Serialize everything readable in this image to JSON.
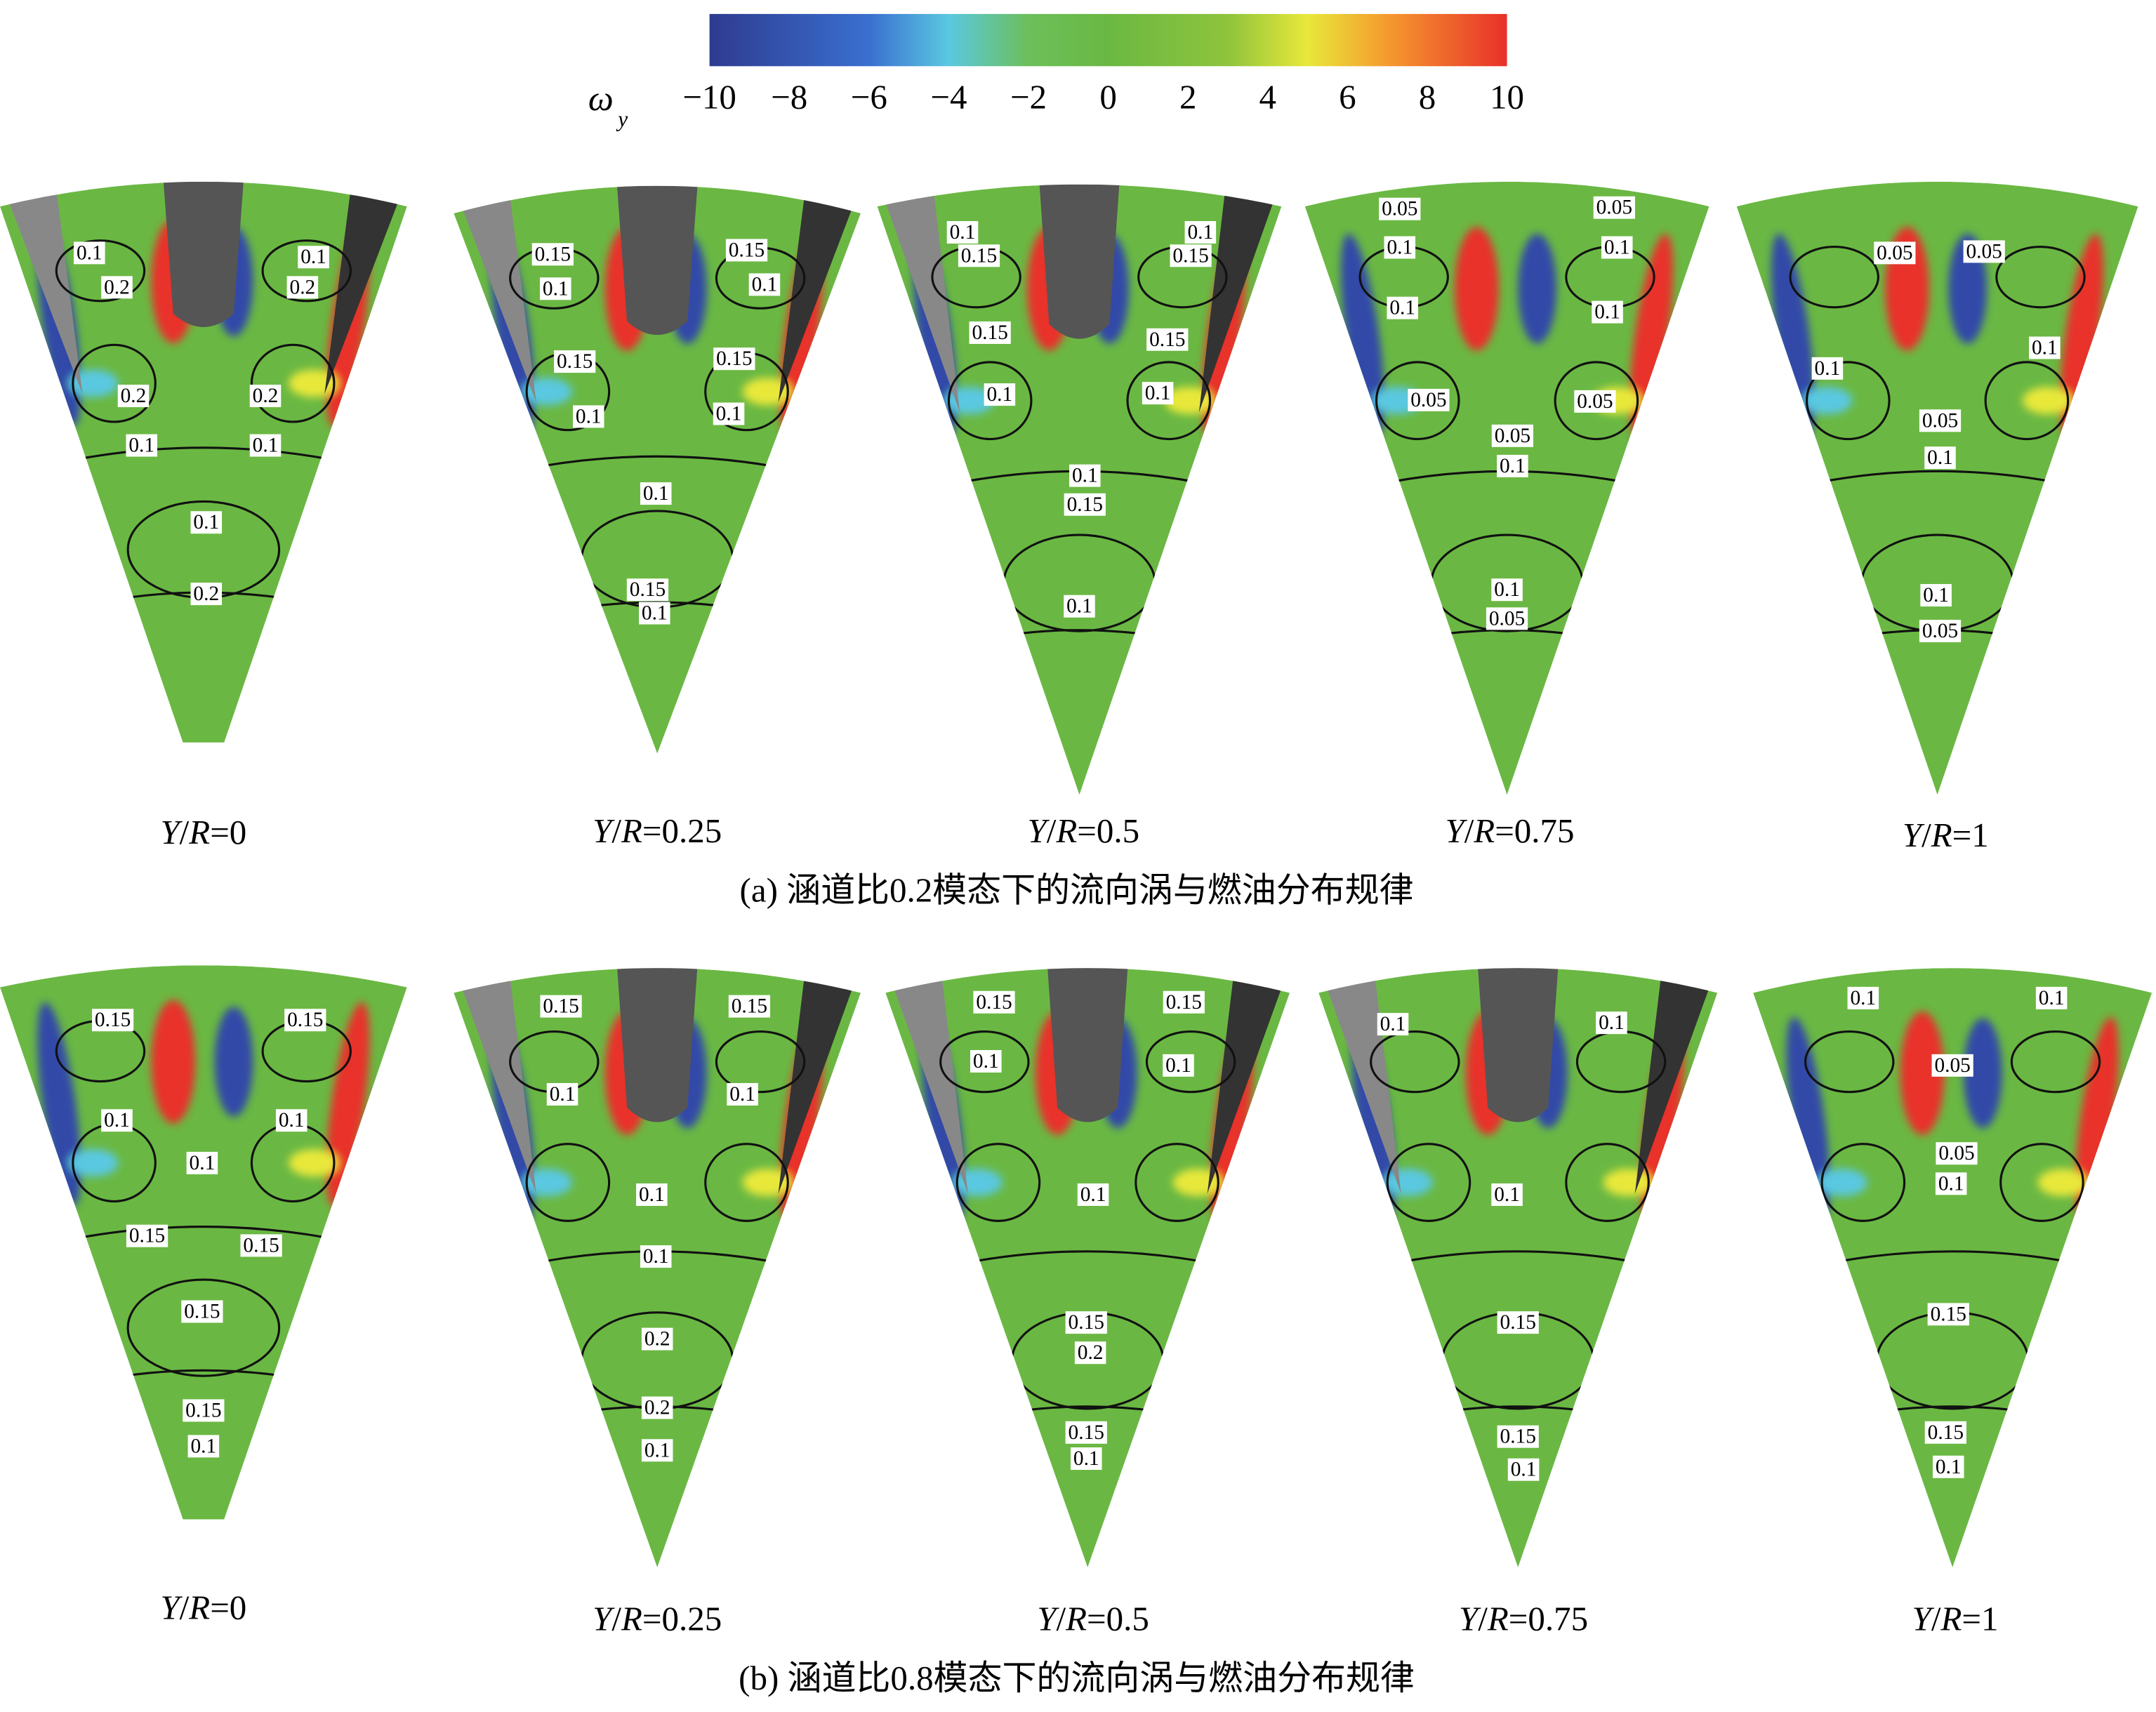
{
  "colorbar": {
    "symbol": "ω",
    "subscript": "y",
    "ticks": [
      "−10",
      "−8",
      "−6",
      "−4",
      "−2",
      "0",
      "2",
      "4",
      "6",
      "8",
      "10"
    ]
  },
  "rows": [
    {
      "caption": "(a) 涵道比0.2模态下的流向涡与燃油分布规律",
      "panels": [
        {
          "label": [
            "Y",
            "/",
            "R",
            "=0"
          ],
          "contours": [
            0.1,
            0.2,
            0.1,
            0.2,
            0.2,
            0.1,
            0.2,
            0.1,
            0.1,
            0.2
          ]
        },
        {
          "label": [
            "Y",
            "/",
            "R",
            "=0.25"
          ],
          "contours": [
            0.15,
            0.1,
            0.15,
            0.1,
            0.15,
            0.1,
            0.15,
            0.1,
            0.1,
            0.15,
            0.1
          ]
        },
        {
          "label": [
            "Y",
            "/",
            "R",
            "=0.5"
          ],
          "contours": [
            0.1,
            0.15,
            0.1,
            0.15,
            0.15,
            0.1,
            0.15,
            0.1,
            0.1,
            0.15,
            0.1
          ]
        },
        {
          "label": [
            "Y",
            "/",
            "R",
            "=0.75"
          ],
          "contours": [
            0.05,
            0.1,
            0.05,
            0.1,
            0.1,
            0.05,
            0.1,
            0.05,
            0.05,
            0.1,
            0.1,
            0.05
          ]
        },
        {
          "label": [
            "Y",
            "/",
            "R",
            "=1"
          ],
          "contours": [
            0.05,
            0.05,
            0.1,
            0.1,
            0.05,
            0.1,
            0.1,
            0.05
          ]
        }
      ]
    },
    {
      "caption": "(b) 涵道比0.8模态下的流向涡与燃油分布规律",
      "panels": [
        {
          "label": [
            "Y",
            "/",
            "R",
            "=0"
          ],
          "contours": [
            0.15,
            0.15,
            0.1,
            0.1,
            0.1,
            0.15,
            0.15,
            0.15,
            0.15,
            0.1
          ]
        },
        {
          "label": [
            "Y",
            "/",
            "R",
            "=0.25"
          ],
          "contours": [
            0.15,
            0.15,
            0.1,
            0.1,
            0.1,
            0.1,
            0.2,
            0.2,
            0.1
          ]
        },
        {
          "label": [
            "Y",
            "/",
            "R",
            "=0.5"
          ],
          "contours": [
            0.15,
            0.15,
            0.1,
            0.1,
            0.1,
            0.15,
            0.2,
            0.15,
            0.1
          ]
        },
        {
          "label": [
            "Y",
            "/",
            "R",
            "=0.75"
          ],
          "contours": [
            0.1,
            0.1,
            0.1,
            0.15,
            0.15,
            0.1
          ]
        },
        {
          "label": [
            "Y",
            "/",
            "R",
            "=1"
          ],
          "contours": [
            0.1,
            0.1,
            0.05,
            0.05,
            0.1,
            0.15,
            0.15,
            0.1
          ]
        }
      ]
    }
  ]
}
